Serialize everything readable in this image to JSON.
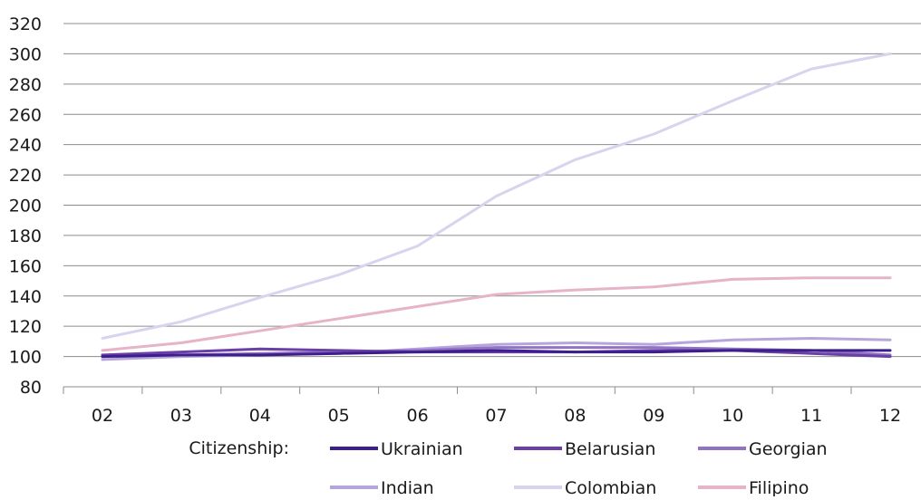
{
  "chart_data": {
    "type": "line",
    "categories": [
      "02",
      "03",
      "04",
      "05",
      "06",
      "07",
      "08",
      "09",
      "10",
      "11",
      "12"
    ],
    "ylim": [
      80,
      320
    ],
    "yticks": [
      80,
      100,
      120,
      140,
      160,
      180,
      200,
      220,
      240,
      260,
      280,
      300,
      320
    ],
    "grid": true,
    "legend_title": "Citizenship:",
    "legend_position": "bottom",
    "series": [
      {
        "name": "Ukrainian",
        "color": "#3d1f8c",
        "values": [
          100,
          101,
          101,
          102,
          103,
          104,
          103,
          103,
          104,
          104,
          104
        ]
      },
      {
        "name": "Belarusian",
        "color": "#6b3fa8",
        "values": [
          101,
          103,
          105,
          104,
          103,
          103,
          103,
          104,
          104,
          102,
          100
        ]
      },
      {
        "name": "Georgian",
        "color": "#9173c4",
        "values": [
          100,
          101,
          102,
          103,
          104,
          106,
          106,
          106,
          105,
          104,
          101
        ]
      },
      {
        "name": "Indian",
        "color": "#b6a5dc",
        "values": [
          98,
          100,
          101,
          102,
          105,
          108,
          109,
          108,
          111,
          112,
          111
        ]
      },
      {
        "name": "Colombian",
        "color": "#d9d3ee",
        "values": [
          112,
          123,
          139,
          154,
          173,
          206,
          230,
          247,
          269,
          290,
          300
        ]
      },
      {
        "name": "Filipino",
        "color": "#e6b3c8",
        "values": [
          104,
          109,
          117,
          125,
          133,
          141,
          144,
          146,
          151,
          152,
          152
        ]
      }
    ]
  }
}
